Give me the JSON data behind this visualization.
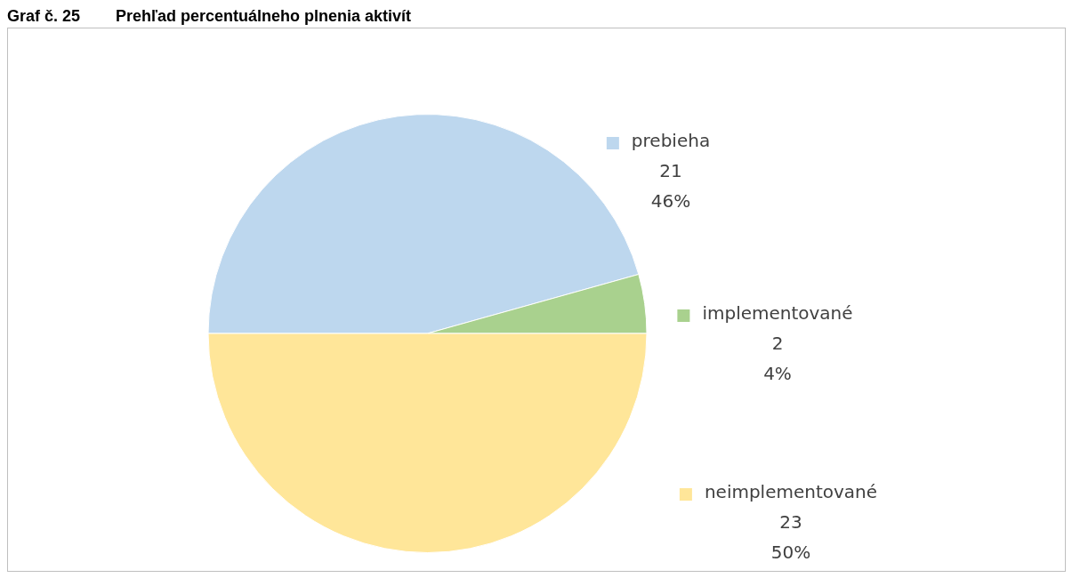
{
  "chart_data": {
    "type": "pie",
    "title": "Graf č. 25        Prehľad percentuálneho plnenia aktivít",
    "categories": [
      "prebieha",
      "implementované",
      "neimplementované"
    ],
    "values": [
      21,
      2,
      23
    ],
    "colors": [
      "#bdd7ee",
      "#a9d18e",
      "#ffe699"
    ],
    "value_labels": [
      "21\n46%",
      "2\n4%",
      "23\n50%"
    ],
    "legend": "right"
  }
}
